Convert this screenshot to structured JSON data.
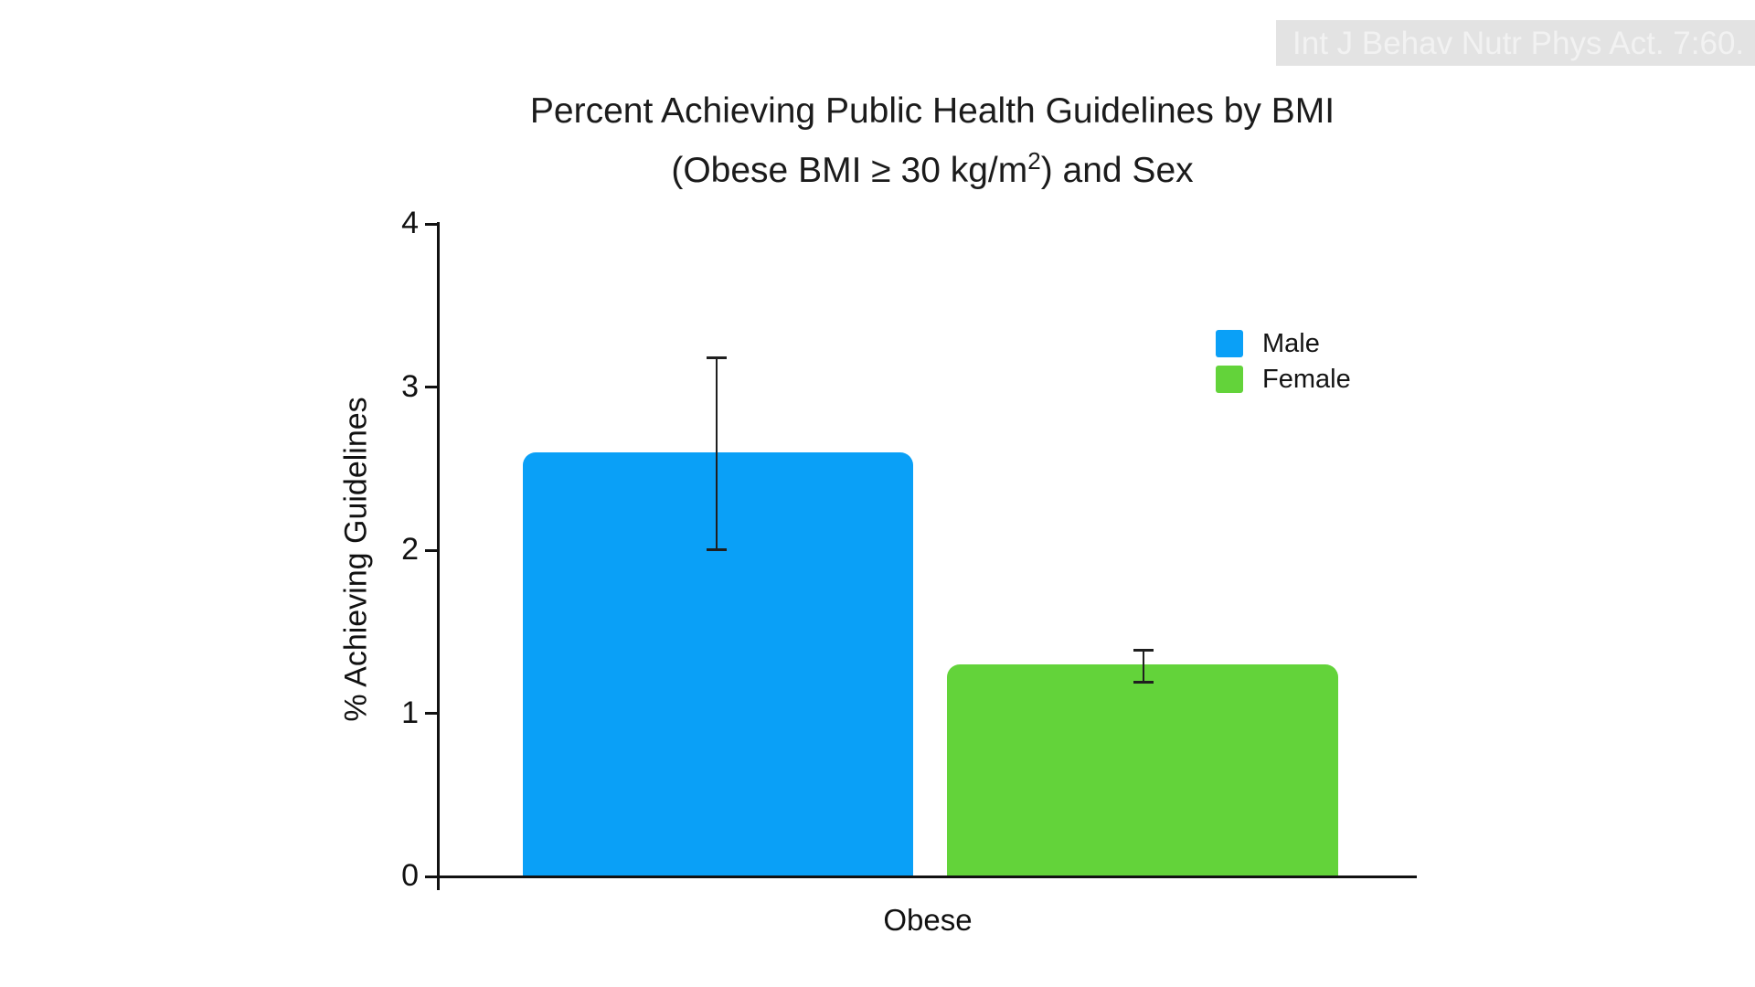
{
  "watermark": {
    "text": "Int J Behav Nutr Phys Act. 7:60.",
    "background": "#e3e3e3",
    "text_color": "#f2f2f2"
  },
  "chart_data": {
    "type": "bar",
    "title": "Percent Achieving Public Health Guidelines by BMI (Obese BMI ≥ 30 kg/m²) and Sex",
    "title_line1": "Percent Achieving Public Health Guidelines by BMI",
    "title_line2_pre": "(Obese BMI ≥ 30 kg/m",
    "title_line2_sup": "2",
    "title_line2_post": ") and Sex",
    "categories": [
      "Obese"
    ],
    "series": [
      {
        "name": "Male",
        "color": "#0aa0f7",
        "value": 2.6,
        "error_lower": 2.0,
        "error_upper": 3.18
      },
      {
        "name": "Female",
        "color": "#63d33a",
        "value": 1.3,
        "error_lower": 1.19,
        "error_upper": 1.39
      }
    ],
    "xlabel": "",
    "ylabel": "% Achieving Guidelines",
    "ylim": [
      0,
      4
    ],
    "yticks": [
      0,
      1,
      2,
      3,
      4
    ],
    "grid": false,
    "legend_position": "upper right",
    "axis_color": "#111111"
  }
}
